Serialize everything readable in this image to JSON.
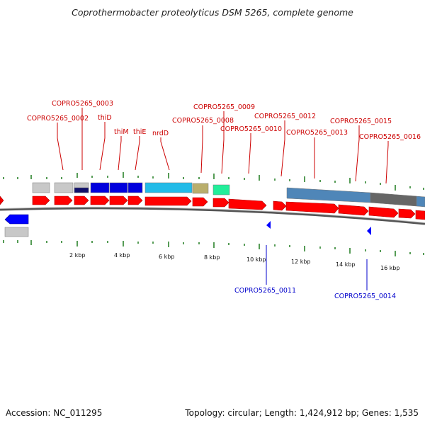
{
  "title": "Coprothermobacter proteolyticus DSM 5265, complete genome",
  "footer": {
    "accession": "Accession: NC_011295",
    "summary": "Topology: circular; Length: 1,424,912 bp; Genes: 1,535"
  },
  "colors": {
    "label_top": "#cc0000",
    "label_bottom": "#0000cc",
    "tick": "#1e7b1e",
    "forward_gene": "#ff0000",
    "reverse_gene": "#0000ff",
    "backbone": "#888888"
  },
  "scale": {
    "unit": "kbp",
    "ticks": [
      {
        "kbp": 2,
        "label": "2 kbp"
      },
      {
        "kbp": 4,
        "label": "4 kbp"
      },
      {
        "kbp": 6,
        "label": "6 kbp"
      },
      {
        "kbp": 8,
        "label": "8 kbp"
      },
      {
        "kbp": 10,
        "label": "10 kbp"
      },
      {
        "kbp": 12,
        "label": "12 kbp"
      },
      {
        "kbp": 14,
        "label": "14 kbp"
      },
      {
        "kbp": 16,
        "label": "16 kbp"
      }
    ]
  },
  "top_labels": [
    {
      "id": "COPRO5265_0002",
      "text": "COPRO5265_0002"
    },
    {
      "id": "COPRO5265_0003",
      "text": "COPRO5265_0003"
    },
    {
      "id": "thiD",
      "text": "thiD"
    },
    {
      "id": "thiM",
      "text": "thiM"
    },
    {
      "id": "thiE",
      "text": "thiE"
    },
    {
      "id": "nrdD",
      "text": "nrdD"
    },
    {
      "id": "COPRO5265_0008",
      "text": "COPRO5265_0008"
    },
    {
      "id": "COPRO5265_0009",
      "text": "COPRO5265_0009"
    },
    {
      "id": "COPRO5265_0010",
      "text": "COPRO5265_0010"
    },
    {
      "id": "COPRO5265_0012",
      "text": "COPRO5265_0012"
    },
    {
      "id": "COPRO5265_0013",
      "text": "COPRO5265_0013"
    },
    {
      "id": "COPRO5265_0015",
      "text": "COPRO5265_0015"
    },
    {
      "id": "COPRO5265_0016",
      "text": "COPRO5265_0016"
    }
  ],
  "bottom_labels": [
    {
      "id": "COPRO5265_0011",
      "text": "COPRO5265_0011"
    },
    {
      "id": "COPRO5265_0014",
      "text": "COPRO5265_0014"
    }
  ]
}
